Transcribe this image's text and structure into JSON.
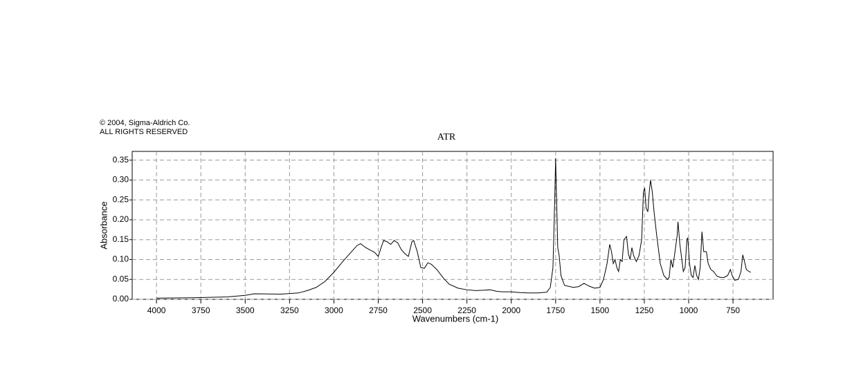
{
  "chart_data": {
    "type": "line",
    "copyright": "© 2004, Sigma-Aldrich Co.",
    "rights": "ALL RIGHTS RESERVED",
    "title": "ATR",
    "x_label": "Wavenumbers (cm-1)",
    "y_label": "Absorbance",
    "grid": true,
    "color": "#000000",
    "xlim": [
      4137,
      524
    ],
    "ylim": [
      0,
      0.372
    ],
    "xticks": [
      4000,
      3750,
      3500,
      3250,
      3000,
      2750,
      2500,
      2250,
      2000,
      1750,
      1500,
      1250,
      1000,
      750
    ],
    "yticks": [
      {
        "value": 0,
        "label": "0.00"
      },
      {
        "value": 0.05,
        "label": "0.05"
      },
      {
        "value": 0.1,
        "label": "0.10"
      },
      {
        "value": 0.15,
        "label": "0.15"
      },
      {
        "value": 0.2,
        "label": "0.20"
      },
      {
        "value": 0.25,
        "label": "0.25"
      },
      {
        "value": 0.3,
        "label": "0.30"
      },
      {
        "value": 0.35,
        "label": "0.35"
      }
    ],
    "x": [
      4000,
      3800,
      3600,
      3500,
      3450,
      3300,
      3200,
      3150,
      3100,
      3050,
      3000,
      2950,
      2900,
      2870,
      2850,
      2820,
      2800,
      2770,
      2750,
      2730,
      2720,
      2700,
      2680,
      2660,
      2640,
      2620,
      2600,
      2580,
      2560,
      2550,
      2530,
      2510,
      2490,
      2470,
      2450,
      2420,
      2380,
      2350,
      2300,
      2250,
      2200,
      2150,
      2120,
      2080,
      2050,
      2000,
      1950,
      1900,
      1850,
      1800,
      1780,
      1765,
      1755,
      1750,
      1745,
      1738,
      1730,
      1720,
      1700,
      1650,
      1620,
      1590,
      1560,
      1530,
      1500,
      1480,
      1460,
      1445,
      1435,
      1425,
      1415,
      1405,
      1395,
      1385,
      1375,
      1365,
      1350,
      1340,
      1330,
      1320,
      1310,
      1295,
      1280,
      1265,
      1255,
      1248,
      1240,
      1230,
      1222,
      1215,
      1205,
      1195,
      1180,
      1160,
      1140,
      1120,
      1110,
      1100,
      1090,
      1080,
      1065,
      1060,
      1050,
      1040,
      1030,
      1020,
      1010,
      1005,
      995,
      985,
      975,
      965,
      955,
      945,
      935,
      925,
      915,
      900,
      890,
      875,
      860,
      840,
      820,
      800,
      780,
      765,
      755,
      740,
      720,
      705,
      695,
      685,
      675,
      660,
      650
    ],
    "values": [
      0.003,
      0.004,
      0.006,
      0.01,
      0.014,
      0.013,
      0.016,
      0.022,
      0.03,
      0.045,
      0.068,
      0.095,
      0.12,
      0.135,
      0.14,
      0.13,
      0.125,
      0.118,
      0.108,
      0.135,
      0.148,
      0.145,
      0.138,
      0.148,
      0.142,
      0.125,
      0.115,
      0.108,
      0.145,
      0.148,
      0.12,
      0.08,
      0.078,
      0.092,
      0.088,
      0.075,
      0.052,
      0.038,
      0.028,
      0.024,
      0.022,
      0.023,
      0.024,
      0.02,
      0.019,
      0.019,
      0.017,
      0.016,
      0.016,
      0.018,
      0.03,
      0.08,
      0.25,
      0.355,
      0.26,
      0.13,
      0.11,
      0.06,
      0.035,
      0.03,
      0.032,
      0.04,
      0.033,
      0.028,
      0.03,
      0.05,
      0.09,
      0.138,
      0.12,
      0.09,
      0.1,
      0.08,
      0.07,
      0.1,
      0.095,
      0.15,
      0.158,
      0.115,
      0.1,
      0.13,
      0.11,
      0.095,
      0.11,
      0.15,
      0.27,
      0.28,
      0.23,
      0.22,
      0.27,
      0.3,
      0.27,
      0.22,
      0.16,
      0.09,
      0.06,
      0.05,
      0.055,
      0.1,
      0.08,
      0.11,
      0.16,
      0.195,
      0.14,
      0.105,
      0.07,
      0.08,
      0.15,
      0.155,
      0.09,
      0.06,
      0.055,
      0.085,
      0.06,
      0.05,
      0.08,
      0.17,
      0.12,
      0.12,
      0.09,
      0.075,
      0.07,
      0.058,
      0.055,
      0.055,
      0.06,
      0.075,
      0.06,
      0.048,
      0.05,
      0.07,
      0.112,
      0.095,
      0.075,
      0.07,
      0.068
    ]
  }
}
